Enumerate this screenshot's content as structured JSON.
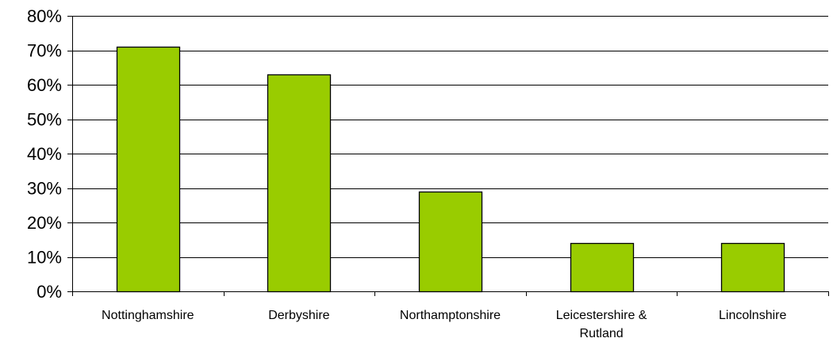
{
  "chart_data": {
    "type": "bar",
    "categories": [
      [
        "Nottinghamshire"
      ],
      [
        "Derbyshire"
      ],
      [
        "Northamptonshire"
      ],
      [
        "Leicestershire &",
        "Rutland"
      ],
      [
        "Lincolnshire"
      ]
    ],
    "values": [
      71,
      63,
      29,
      14,
      14
    ],
    "ylim": [
      0,
      80
    ],
    "yticks": [
      0,
      10,
      20,
      30,
      40,
      50,
      60,
      70,
      80
    ],
    "ytick_suffix": "%",
    "grid": true,
    "legend": "none",
    "bar_color": "#99cc00",
    "bar_edge_color": "#000000"
  }
}
